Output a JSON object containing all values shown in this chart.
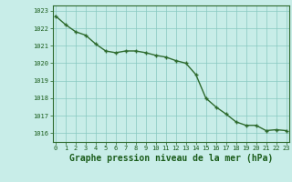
{
  "x": [
    0,
    1,
    2,
    3,
    4,
    5,
    6,
    7,
    8,
    9,
    10,
    11,
    12,
    13,
    14,
    15,
    16,
    17,
    18,
    19,
    20,
    21,
    22,
    23
  ],
  "y": [
    1022.7,
    1022.2,
    1021.8,
    1021.6,
    1021.1,
    1020.7,
    1020.6,
    1020.7,
    1020.7,
    1020.6,
    1020.45,
    1020.35,
    1020.15,
    1020.0,
    1019.35,
    1018.0,
    1017.5,
    1017.1,
    1016.65,
    1016.45,
    1016.45,
    1016.15,
    1016.2,
    1016.15
  ],
  "ylim": [
    1015.5,
    1023.3
  ],
  "yticks": [
    1016,
    1017,
    1018,
    1019,
    1020,
    1021,
    1022,
    1023
  ],
  "xticks": [
    0,
    1,
    2,
    3,
    4,
    5,
    6,
    7,
    8,
    9,
    10,
    11,
    12,
    13,
    14,
    15,
    16,
    17,
    18,
    19,
    20,
    21,
    22,
    23
  ],
  "xlabel": "Graphe pression niveau de la mer (hPa)",
  "line_color": "#2d6a2d",
  "marker": "+",
  "bg_color": "#c8ede8",
  "grid_color": "#88c8c0",
  "axis_color": "#2d6a2d",
  "label_color": "#1a5c1a",
  "tick_label_size": 5.0,
  "xlabel_size": 7.0,
  "linewidth": 1.0,
  "markersize": 3.5,
  "markeredgewidth": 1.0
}
